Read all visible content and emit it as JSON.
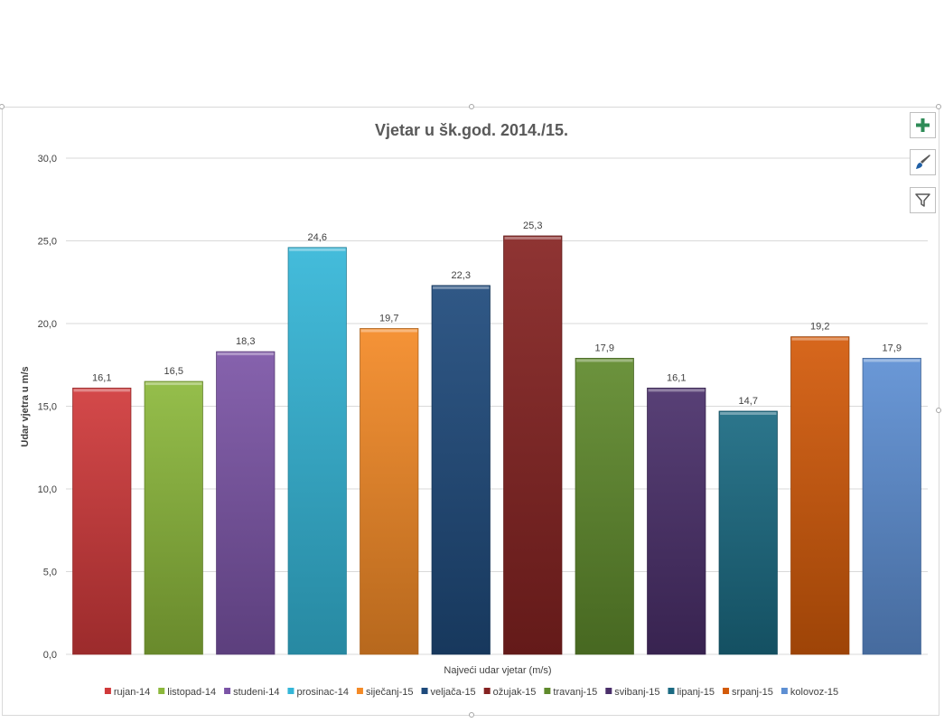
{
  "chart_data": {
    "type": "bar",
    "title": "Vjetar u šk.god. 2014./15.",
    "xlabel": "Najveći udar vjetar (m/s)",
    "ylabel": "Udar vjetra u m/s",
    "ylim": [
      0,
      30
    ],
    "yticks": [
      "0,0",
      "5,0",
      "10,0",
      "15,0",
      "20,0",
      "25,0",
      "30,0"
    ],
    "grid": true,
    "legend_position": "bottom",
    "categories": [
      "rujan-14",
      "listopad-14",
      "studeni-14",
      "prosinac-14",
      "siječanj-15",
      "veljača-15",
      "ožujak-15",
      "travanj-15",
      "svibanj-15",
      "lipanj-15",
      "srpanj-15",
      "kolovoz-15"
    ],
    "values": [
      16.1,
      16.5,
      18.3,
      24.6,
      19.7,
      22.3,
      25.3,
      17.9,
      16.1,
      14.7,
      19.2,
      17.9
    ],
    "data_labels": [
      "16,1",
      "16,5",
      "18,3",
      "24,6",
      "19,7",
      "22,3",
      "25,3",
      "17,9",
      "16,1",
      "14,7",
      "19,2",
      "17,9"
    ],
    "colors": [
      "#d0393a",
      "#8cb83b",
      "#7b54a6",
      "#34b6d8",
      "#f48a26",
      "#1e4a7c",
      "#852221",
      "#5f8a2c",
      "#4a2f6a",
      "#1a6a82",
      "#d35a09",
      "#5d8fd3"
    ]
  },
  "side_buttons": [
    {
      "name": "chart-elements-button",
      "icon": "plus-icon",
      "color": "#2e8b57"
    },
    {
      "name": "chart-styles-button",
      "icon": "paintbrush-icon",
      "color": "#1f5fa5"
    },
    {
      "name": "chart-filters-button",
      "icon": "filter-icon",
      "color": "#595959"
    }
  ]
}
